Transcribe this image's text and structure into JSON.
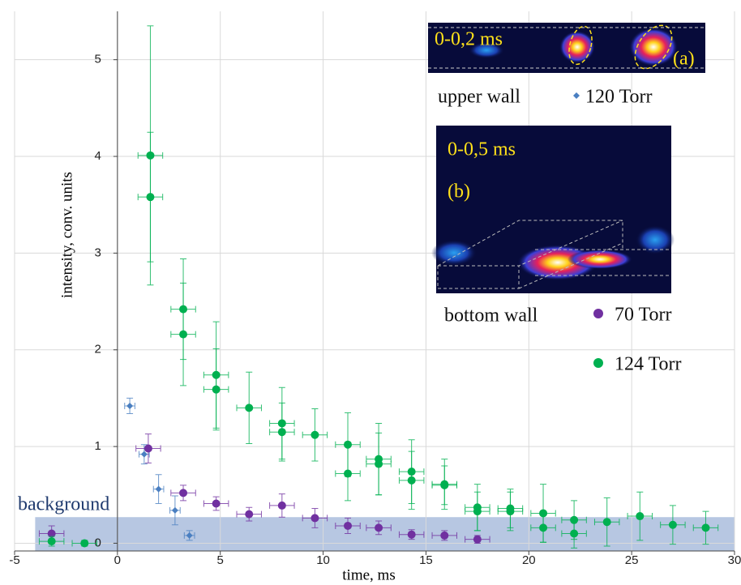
{
  "chart_data": {
    "type": "scatter",
    "xlabel": "time, ms",
    "ylabel": "intensity, conv. units",
    "xlim": [
      -5,
      30
    ],
    "ylim": [
      -0.08,
      5.5
    ],
    "xticks": [
      -5,
      0,
      5,
      10,
      15,
      20,
      25,
      30
    ],
    "yticks": [
      0,
      1,
      2,
      3,
      4,
      5
    ],
    "grid": true,
    "annotations": {
      "background": "background",
      "background_band": {
        "xlim": [
          -4,
          30
        ],
        "ylim": [
          -0.08,
          0.27
        ]
      },
      "inset_a_time": "0-0,2 ms",
      "inset_a_label": "(a)",
      "inset_a_wall": "upper wall",
      "inset_b_time": "0-0,5 ms",
      "inset_b_label": "(b)",
      "inset_b_wall": "bottom wall"
    },
    "series": [
      {
        "name": "120 Torr",
        "color": "#4a7fc1",
        "marker": "diamond",
        "x": [
          0.6,
          1.3,
          2.0,
          2.8,
          3.5
        ],
        "values": [
          1.42,
          0.92,
          0.56,
          0.34,
          0.08
        ],
        "y_err": [
          0.08,
          0.1,
          0.15,
          0.15,
          0.05
        ],
        "x_err": [
          0.25,
          0.25,
          0.25,
          0.25,
          0.25
        ]
      },
      {
        "name": "70 Torr",
        "color": "#7030a0",
        "marker": "circle",
        "x": [
          -3.2,
          1.5,
          3.2,
          4.8,
          6.4,
          8,
          9.6,
          11.2,
          12.7,
          14.3,
          15.9,
          17.5
        ],
        "values": [
          0.1,
          0.98,
          0.52,
          0.41,
          0.3,
          0.39,
          0.26,
          0.18,
          0.16,
          0.09,
          0.08,
          0.04
        ],
        "y_err": [
          0.08,
          0.15,
          0.08,
          0.07,
          0.07,
          0.12,
          0.1,
          0.08,
          0.07,
          0.05,
          0.05,
          0.04
        ],
        "x_err": [
          0.6,
          0.6,
          0.6,
          0.6,
          0.6,
          0.6,
          0.6,
          0.6,
          0.6,
          0.6,
          0.6,
          0.6
        ]
      },
      {
        "name": "124 Torr",
        "color": "#00b050",
        "marker": "circle",
        "x": [
          -3.2,
          -1.6,
          1.6,
          1.6,
          3.2,
          3.2,
          4.8,
          4.8,
          6.4,
          8,
          8,
          9.6,
          11.2,
          11.2,
          12.7,
          12.7,
          14.3,
          14.3,
          15.9,
          15.9,
          17.5,
          17.5,
          19.1,
          19.1,
          20.7,
          20.7,
          22.2,
          22.2,
          23.8,
          25.4,
          27,
          28.6
        ],
        "values": [
          0.02,
          0.0,
          4.01,
          3.58,
          2.42,
          2.16,
          1.74,
          1.59,
          1.4,
          1.24,
          1.15,
          1.12,
          1.02,
          0.72,
          0.87,
          0.82,
          0.74,
          0.65,
          0.61,
          0.6,
          0.37,
          0.33,
          0.36,
          0.33,
          0.31,
          0.16,
          0.24,
          0.1,
          0.22,
          0.28,
          0.19,
          0.16
        ],
        "y_err": [
          0.05,
          0.03,
          1.34,
          0.67,
          0.52,
          0.53,
          0.55,
          0.42,
          0.37,
          0.37,
          0.3,
          0.27,
          0.33,
          0.28,
          0.37,
          0.32,
          0.33,
          0.3,
          0.26,
          0.2,
          0.24,
          0.2,
          0.2,
          0.2,
          0.3,
          0.15,
          0.2,
          0.15,
          0.25,
          0.25,
          0.2,
          0.17
        ],
        "x_err": [
          0.6,
          0.6,
          0.6,
          0.6,
          0.6,
          0.6,
          0.6,
          0.6,
          0.6,
          0.6,
          0.6,
          0.6,
          0.6,
          0.6,
          0.6,
          0.6,
          0.6,
          0.6,
          0.6,
          0.6,
          0.6,
          0.6,
          0.6,
          0.6,
          0.6,
          0.6,
          0.6,
          0.6,
          0.6,
          0.6,
          0.6,
          0.6
        ]
      }
    ]
  }
}
